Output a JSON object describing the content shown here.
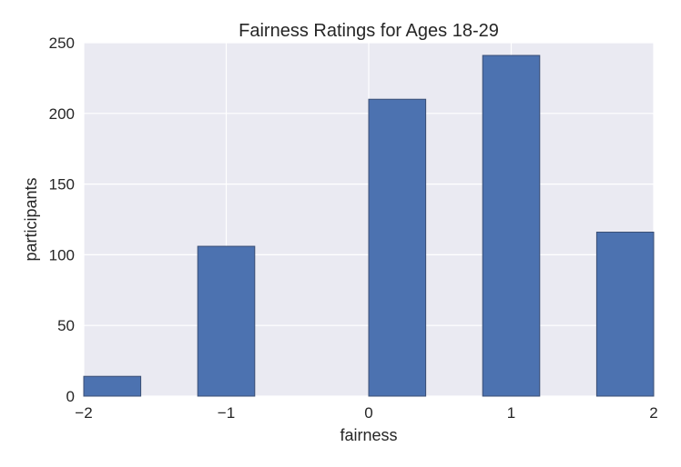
{
  "chart_data": {
    "type": "bar",
    "title": "Fairness Ratings for Ages 18-29",
    "xlabel": "fairness",
    "ylabel": "participants",
    "xlim": [
      -2,
      2
    ],
    "ylim": [
      0,
      250
    ],
    "bin_width": 0.4,
    "bars": [
      {
        "x_start": -2.0,
        "x_end": -1.6,
        "value": 14
      },
      {
        "x_start": -1.6,
        "x_end": -1.2,
        "value": 0
      },
      {
        "x_start": -1.2,
        "x_end": -0.8,
        "value": 106
      },
      {
        "x_start": -0.8,
        "x_end": -0.4,
        "value": 0
      },
      {
        "x_start": -0.4,
        "x_end": 0.0,
        "value": 0
      },
      {
        "x_start": 0.0,
        "x_end": 0.4,
        "value": 210
      },
      {
        "x_start": 0.4,
        "x_end": 0.8,
        "value": 0
      },
      {
        "x_start": 0.8,
        "x_end": 1.2,
        "value": 241
      },
      {
        "x_start": 1.2,
        "x_end": 1.6,
        "value": 0
      },
      {
        "x_start": 1.6,
        "x_end": 2.0,
        "value": 116
      }
    ],
    "x_ticks": [
      {
        "value": -2,
        "label": "−2"
      },
      {
        "value": -1,
        "label": "−1"
      },
      {
        "value": 0,
        "label": "0"
      },
      {
        "value": 1,
        "label": "1"
      },
      {
        "value": 2,
        "label": "2"
      }
    ],
    "y_ticks": [
      {
        "value": 0,
        "label": "0"
      },
      {
        "value": 50,
        "label": "50"
      },
      {
        "value": 100,
        "label": "100"
      },
      {
        "value": 150,
        "label": "150"
      },
      {
        "value": 200,
        "label": "200"
      },
      {
        "value": 250,
        "label": "250"
      }
    ],
    "grid": true,
    "colors": {
      "background": "#eaeaf2",
      "bar_fill": "#4c72b0",
      "bar_edge": "#3b4f75",
      "grid": "#ffffff"
    }
  }
}
